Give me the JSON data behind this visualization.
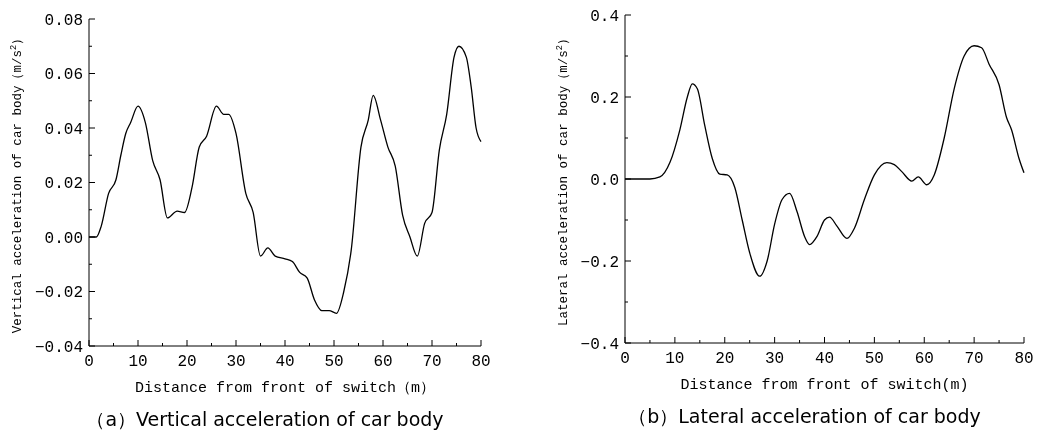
{
  "chart_data": [
    {
      "type": "line",
      "title": "（a）Vertical acceleration of car body",
      "xlabel": "Distance from front of switch（m）",
      "ylabel": "Vertical acceleration of car body（m/s$^{2}$）",
      "xlim": [
        0,
        80
      ],
      "ylim": [
        -0.04,
        0.08
      ],
      "xticks": [
        0,
        {
          "value": 5,
          "label": null
        },
        10,
        {
          "value": 15,
          "label": null
        },
        20,
        {
          "value": 25,
          "label": null
        },
        30,
        {
          "value": 35,
          "label": null
        },
        40,
        {
          "value": 45,
          "label": null
        },
        50,
        {
          "value": 55,
          "label": null
        },
        60,
        {
          "value": 65,
          "label": null
        },
        70,
        {
          "value": 75,
          "label": null
        },
        80
      ],
      "yticks": [
        {
          "value": -0.04,
          "label": "−0.04"
        },
        {
          "value": -0.03,
          "label": null
        },
        {
          "value": -0.02,
          "label": "−0.02"
        },
        {
          "value": -0.01,
          "label": null
        },
        {
          "value": 0,
          "label": "0.00"
        },
        {
          "value": 0.01,
          "label": null
        },
        {
          "value": 0.02,
          "label": "0.02"
        },
        {
          "value": 0.03,
          "label": null
        },
        {
          "value": 0.04,
          "label": "0.04"
        },
        {
          "value": 0.05,
          "label": null
        },
        {
          "value": 0.06,
          "label": "0.06"
        },
        {
          "value": 0.07,
          "label": null
        },
        {
          "value": 0.08,
          "label": "0.08"
        }
      ],
      "series": [
        {
          "color": "#000000",
          "x": [
            0,
            1.5,
            2.5,
            4,
            5.5,
            6.5,
            7.5,
            8.5,
            10,
            11.5,
            13,
            14.5,
            16,
            18,
            19.5,
            21,
            22.5,
            24,
            26,
            27.5,
            28.5,
            30,
            32,
            33.5,
            35,
            36.5,
            38,
            40,
            41.5,
            43,
            44.5,
            46,
            47.5,
            49,
            50.5,
            52,
            53.5,
            55.5,
            57,
            58,
            59.5,
            61,
            62.5,
            64,
            65.5,
            67,
            68.5,
            70,
            71.5,
            73,
            74.5,
            75.5,
            77,
            78,
            79,
            80
          ],
          "values": [
            0,
            0,
            0.004,
            0.016,
            0.021,
            0.03,
            0.038,
            0.042,
            0.048,
            0.042,
            0.028,
            0.021,
            0.007,
            0.0095,
            0.009,
            0.018,
            0.033,
            0.037,
            0.048,
            0.045,
            0.045,
            0.038,
            0.016,
            0.009,
            -0.007,
            -0.004,
            -0.007,
            -0.008,
            -0.009,
            -0.013,
            -0.015,
            -0.023,
            -0.027,
            -0.027,
            -0.028,
            -0.02,
            -0.005,
            0.033,
            0.043,
            0.052,
            0.043,
            0.033,
            0.026,
            0.008,
            0,
            -0.007,
            0.005,
            0.009,
            0.032,
            0.045,
            0.066,
            0.07,
            0.066,
            0.055,
            0.04,
            0.035
          ]
        }
      ]
    },
    {
      "type": "line",
      "title": "（b）Lateral acceleration of car body",
      "xlabel": "Distance from front of switch(m)",
      "ylabel": "Lateral acceleration of car body（m/s$^{2}$）",
      "xlim": [
        0,
        80
      ],
      "ylim": [
        -0.4,
        0.4
      ],
      "xticks": [
        0,
        {
          "value": 5,
          "label": null
        },
        10,
        {
          "value": 15,
          "label": null
        },
        20,
        {
          "value": 25,
          "label": null
        },
        30,
        {
          "value": 35,
          "label": null
        },
        40,
        {
          "value": 45,
          "label": null
        },
        50,
        {
          "value": 55,
          "label": null
        },
        60,
        {
          "value": 65,
          "label": null
        },
        70,
        {
          "value": 75,
          "label": null
        },
        80
      ],
      "yticks": [
        {
          "value": -0.4,
          "label": "−0.4"
        },
        {
          "value": -0.3,
          "label": null
        },
        {
          "value": -0.2,
          "label": "−0.2"
        },
        {
          "value": -0.1,
          "label": null
        },
        {
          "value": 0,
          "label": "0.0"
        },
        {
          "value": 0.1,
          "label": null
        },
        {
          "value": 0.2,
          "label": "0.2"
        },
        {
          "value": 0.3,
          "label": null
        },
        {
          "value": 0.4,
          "label": "0.4"
        }
      ],
      "series": [
        {
          "color": "#000000",
          "x": [
            0,
            5,
            7,
            9,
            11,
            12.5,
            13.5,
            14.5,
            16,
            17.5,
            19,
            20.5,
            22,
            23.5,
            25,
            27,
            28.5,
            30,
            31.5,
            33,
            34.5,
            36,
            37,
            38.5,
            40,
            41,
            42.5,
            44.5,
            46,
            48,
            50,
            52.5,
            54,
            55.5,
            57.5,
            58.8,
            60.5,
            62,
            64,
            66,
            68,
            70,
            71.5,
            73,
            75,
            76.5,
            77.5,
            79,
            80
          ],
          "values": [
            0,
            0,
            0.005,
            0.04,
            0.12,
            0.2,
            0.232,
            0.22,
            0.13,
            0.05,
            0.012,
            0.01,
            -0.02,
            -0.1,
            -0.18,
            -0.237,
            -0.2,
            -0.11,
            -0.05,
            -0.035,
            -0.08,
            -0.14,
            -0.16,
            -0.14,
            -0.1,
            -0.093,
            -0.115,
            -0.145,
            -0.12,
            -0.05,
            0.01,
            0.04,
            0.035,
            0.018,
            -0.005,
            0.005,
            -0.014,
            0.01,
            0.1,
            0.22,
            0.3,
            0.325,
            0.32,
            0.28,
            0.23,
            0.15,
            0.12,
            0.05,
            0.015
          ]
        }
      ]
    }
  ]
}
